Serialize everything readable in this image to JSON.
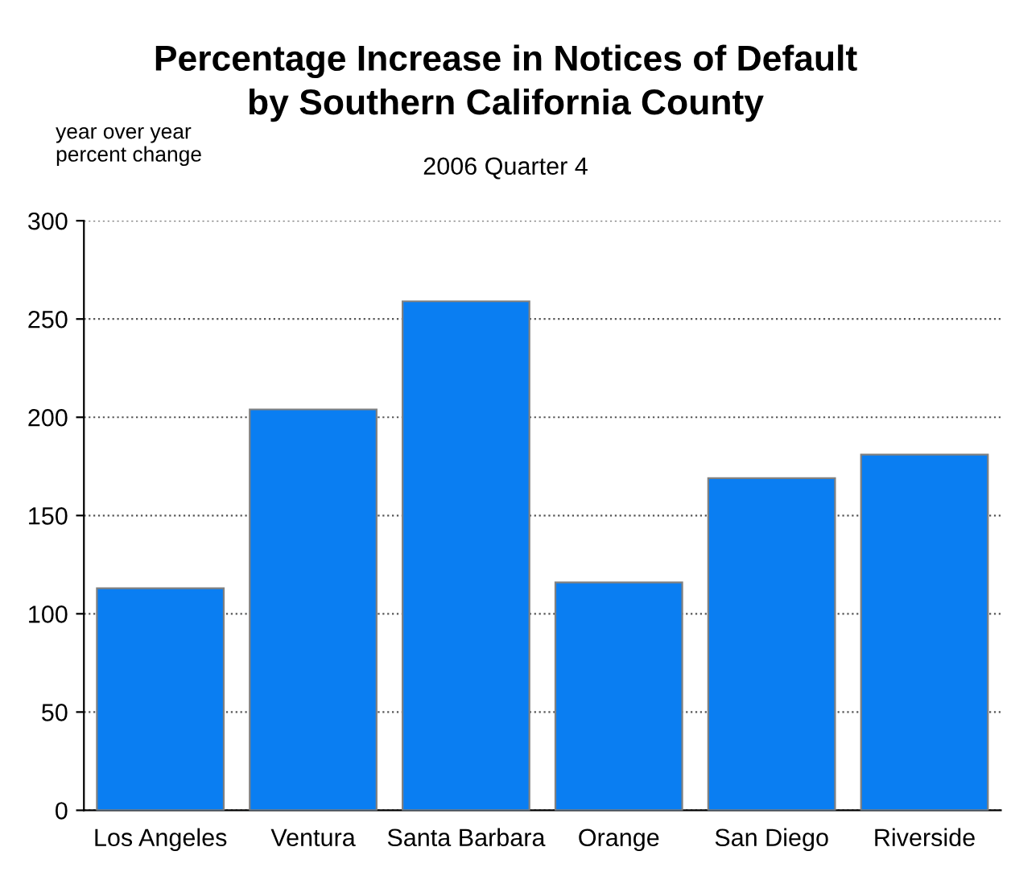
{
  "chart_data": {
    "type": "bar",
    "title": "Percentage Increase in Notices of Default\nby Southern California County",
    "subtitle": "2006 Quarter 4",
    "ylabel": "year over year\npercent change",
    "categories": [
      "Los Angeles",
      "Ventura",
      "Santa Barbara",
      "Orange",
      "San Diego",
      "Riverside"
    ],
    "values": [
      113,
      204,
      259,
      116,
      169,
      181
    ],
    "color": "#0a7ef2",
    "ylim": [
      0,
      300
    ],
    "yticks": [
      0,
      50,
      100,
      150,
      200,
      250,
      300
    ],
    "grid": "y"
  }
}
